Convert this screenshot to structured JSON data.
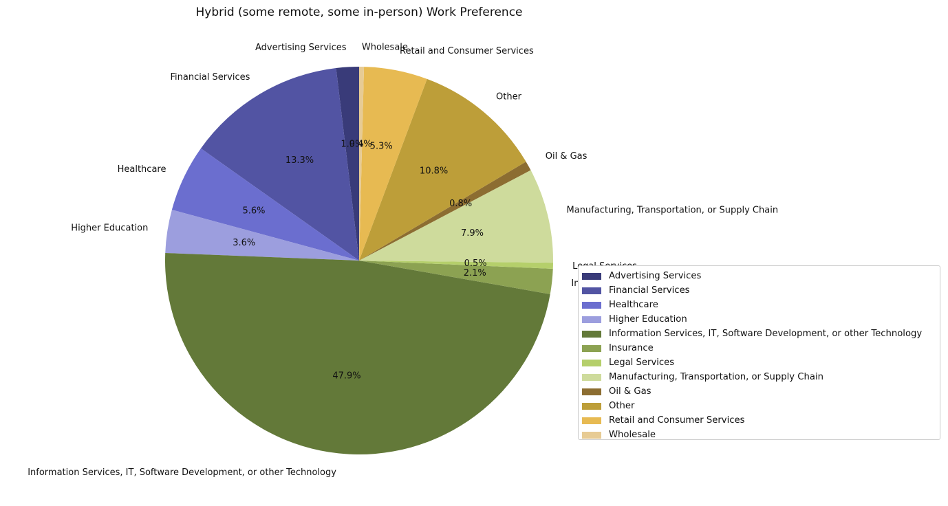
{
  "chart_data": {
    "type": "pie",
    "title": "Hybrid (some remote, some in-person) Work Preference",
    "slices": [
      {
        "label": "Advertising Services",
        "value": 1.9,
        "pct_label": "1.9%",
        "color": "#393b79"
      },
      {
        "label": "Financial Services",
        "value": 13.3,
        "pct_label": "13.3%",
        "color": "#5254a3"
      },
      {
        "label": "Healthcare",
        "value": 5.6,
        "pct_label": "5.6%",
        "color": "#6b6ecf"
      },
      {
        "label": "Higher Education",
        "value": 3.6,
        "pct_label": "3.6%",
        "color": "#9c9ede"
      },
      {
        "label": "Information Services, IT, Software Development, or other Technology",
        "value": 47.9,
        "pct_label": "47.9%",
        "color": "#637939"
      },
      {
        "label": "Insurance",
        "value": 2.1,
        "pct_label": "2.1%",
        "color": "#8ca252"
      },
      {
        "label": "Legal Services",
        "value": 0.5,
        "pct_label": "0.5%",
        "color": "#b5cf6b"
      },
      {
        "label": "Manufacturing, Transportation, or Supply Chain",
        "value": 7.9,
        "pct_label": "7.9%",
        "color": "#cedb9c"
      },
      {
        "label": "Oil & Gas",
        "value": 0.8,
        "pct_label": "0.8%",
        "color": "#8c6d31"
      },
      {
        "label": "Other",
        "value": 10.8,
        "pct_label": "10.8%",
        "color": "#bd9e39"
      },
      {
        "label": "Retail and Consumer Services",
        "value": 5.3,
        "pct_label": "5.3%",
        "color": "#e7ba52"
      },
      {
        "label": "Wholesale",
        "value": 0.4,
        "pct_label": "0.4%",
        "color": "#e7cb94"
      }
    ],
    "start_angle": 90,
    "direction": "counterclockwise",
    "legend_position": "center-right"
  }
}
